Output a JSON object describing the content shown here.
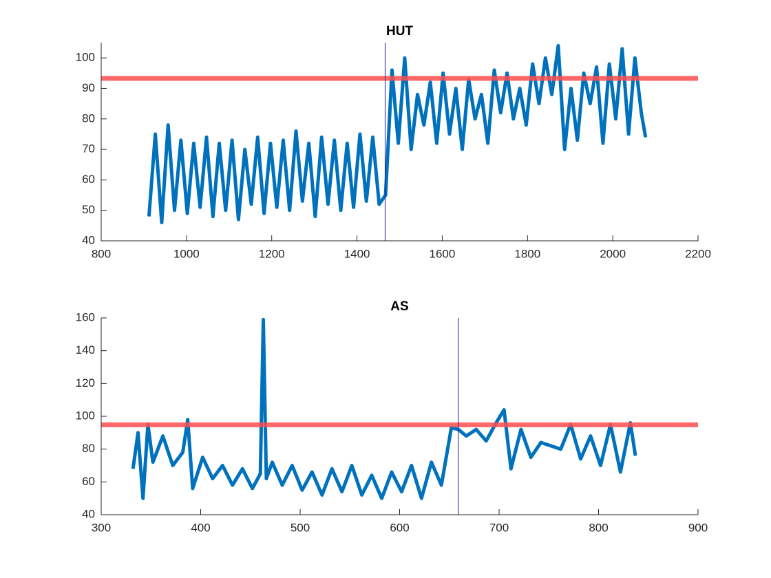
{
  "chart_data": [
    {
      "type": "line",
      "title": "HUT",
      "x": [
        912,
        927,
        942,
        957,
        972,
        987,
        1002,
        1017,
        1032,
        1047,
        1062,
        1077,
        1092,
        1107,
        1122,
        1137,
        1152,
        1167,
        1182,
        1197,
        1212,
        1227,
        1242,
        1257,
        1272,
        1287,
        1302,
        1317,
        1332,
        1347,
        1362,
        1377,
        1392,
        1407,
        1422,
        1437,
        1452,
        1467,
        1482,
        1497,
        1512,
        1527,
        1542,
        1557,
        1572,
        1587,
        1602,
        1617,
        1632,
        1647,
        1662,
        1677,
        1692,
        1707,
        1722,
        1737,
        1752,
        1767,
        1782,
        1797,
        1812,
        1827,
        1842,
        1857,
        1872,
        1887,
        1902,
        1917,
        1932,
        1947,
        1962,
        1977,
        1992,
        2007,
        2022,
        2037,
        2052,
        2067,
        2077
      ],
      "series": [
        {
          "color": "#0072bd",
          "values": [
            48,
            75,
            46,
            78,
            50,
            73,
            49,
            72,
            51,
            74,
            48,
            72,
            50,
            73,
            47,
            70,
            52,
            74,
            49,
            72,
            51,
            73,
            50,
            76,
            53,
            72,
            48,
            74,
            52,
            73,
            50,
            72,
            51,
            75,
            53,
            74,
            52,
            55,
            96,
            72,
            100,
            70,
            88,
            78,
            92,
            72,
            95,
            75,
            90,
            70,
            93,
            80,
            88,
            72,
            96,
            82,
            95,
            80,
            90,
            78,
            98,
            85,
            100,
            88,
            104,
            70,
            90,
            73,
            95,
            85,
            97,
            72,
            98,
            80,
            103,
            75,
            100,
            82,
            74
          ]
        }
      ],
      "xlim": [
        800,
        2200
      ],
      "xticks": [
        800,
        1000,
        1200,
        1400,
        1600,
        1800,
        2000,
        2200
      ],
      "ylim": [
        40,
        105
      ],
      "yticks": [
        40,
        50,
        60,
        70,
        80,
        90,
        100
      ],
      "reference_lines": [
        {
          "axis": "y",
          "value": 93.3,
          "color": "#ff4d4d"
        },
        {
          "axis": "x",
          "value": 1466,
          "color": "#1a1a99"
        }
      ]
    },
    {
      "type": "line",
      "title": "AS",
      "x": [
        332,
        337,
        342,
        347,
        352,
        362,
        372,
        382,
        387,
        392,
        402,
        412,
        422,
        432,
        442,
        452,
        460,
        463,
        466,
        472,
        482,
        492,
        502,
        512,
        522,
        532,
        542,
        552,
        562,
        572,
        582,
        592,
        602,
        612,
        622,
        632,
        642,
        652,
        659,
        667,
        677,
        687,
        697,
        705,
        712,
        722,
        732,
        742,
        752,
        762,
        772,
        782,
        792,
        802,
        812,
        822,
        832,
        837
      ],
      "series": [
        {
          "color": "#0072bd",
          "values": [
            68,
            90,
            50,
            95,
            72,
            88,
            70,
            78,
            98,
            56,
            75,
            62,
            70,
            58,
            68,
            56,
            65,
            159,
            62,
            72,
            58,
            70,
            55,
            66,
            52,
            68,
            54,
            70,
            52,
            64,
            50,
            66,
            54,
            70,
            50,
            72,
            58,
            93,
            92,
            88,
            92,
            85,
            96,
            104,
            68,
            92,
            75,
            84,
            82,
            80,
            95,
            74,
            88,
            70,
            95,
            66,
            96,
            76
          ]
        }
      ],
      "xlim": [
        300,
        900
      ],
      "xticks": [
        300,
        400,
        500,
        600,
        700,
        800,
        900
      ],
      "ylim": [
        40,
        160
      ],
      "yticks": [
        40,
        60,
        80,
        100,
        120,
        140,
        160
      ],
      "reference_lines": [
        {
          "axis": "y",
          "value": 94.8,
          "color": "#ff4d4d"
        },
        {
          "axis": "x",
          "value": 659,
          "color": "#1a1a99"
        }
      ]
    }
  ]
}
